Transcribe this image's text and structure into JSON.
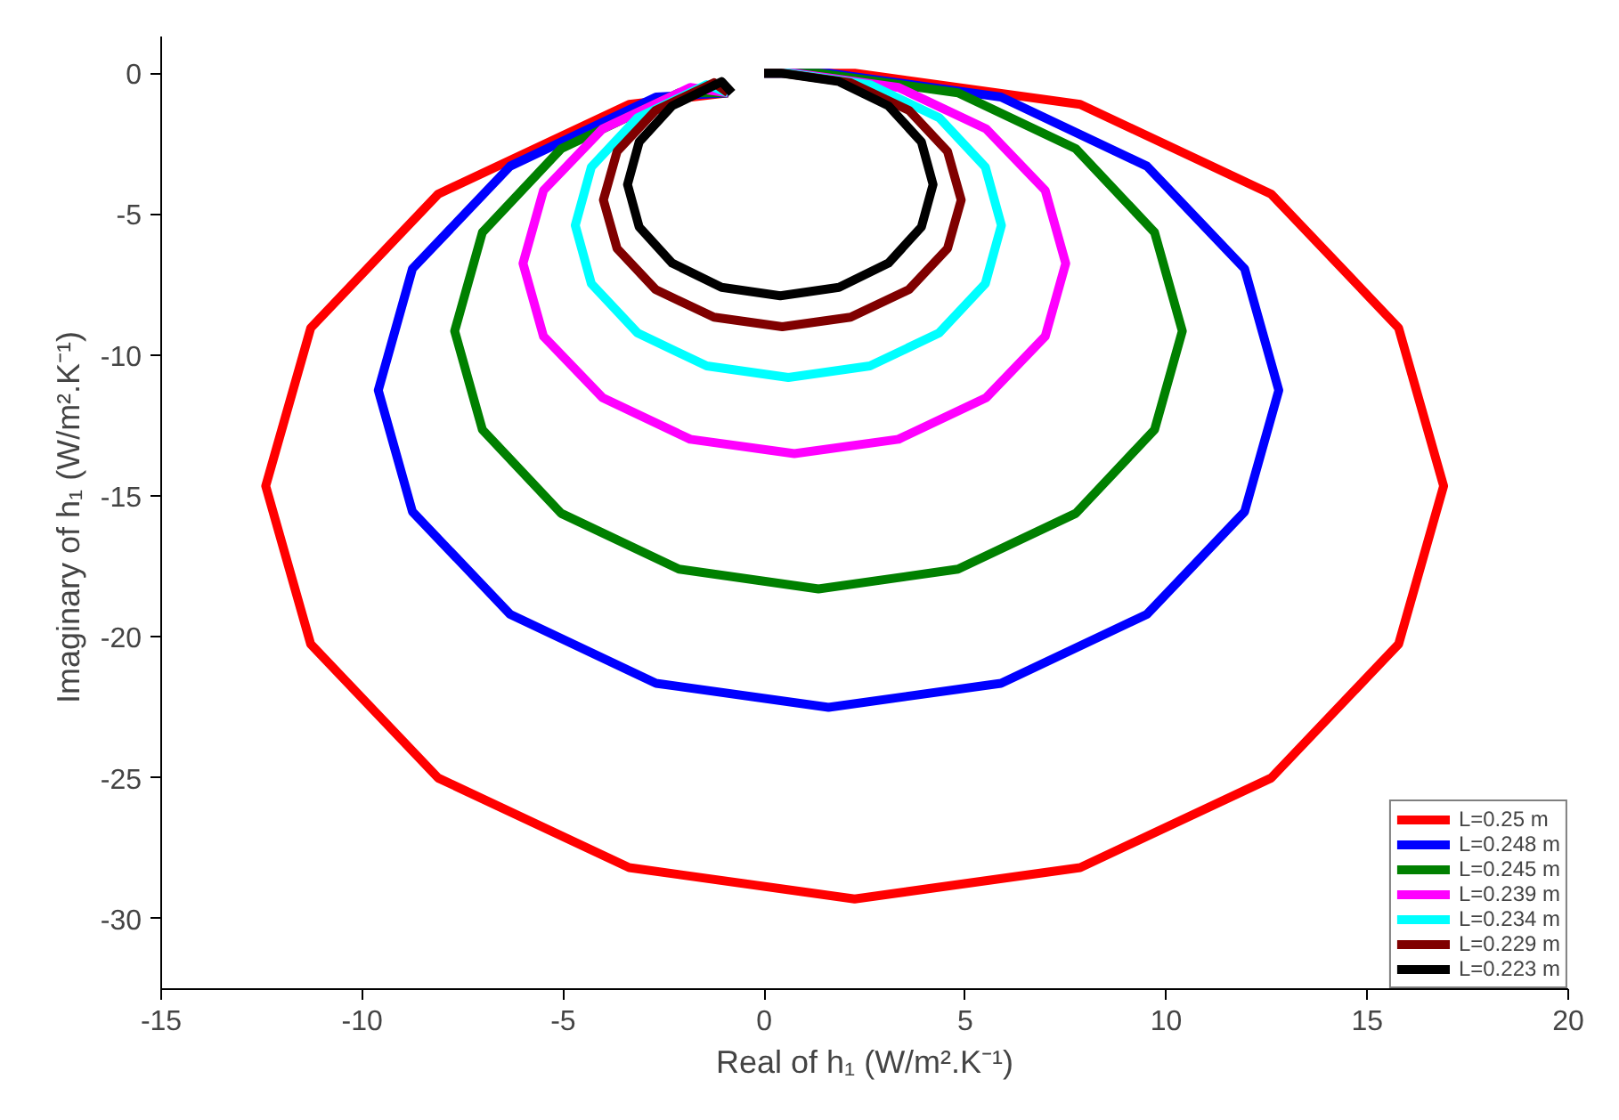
{
  "chart_data": {
    "type": "line",
    "xlabel": "Real of h₁ (W/m².K⁻¹)",
    "ylabel": "Imaginary of  h₁ (W/m².K⁻¹)",
    "xlim": [
      -15,
      20
    ],
    "ylim": [
      -32.5,
      1.3
    ],
    "xticks": [
      -15,
      -10,
      -5,
      0,
      5,
      10,
      15,
      20
    ],
    "yticks": [
      -30,
      -25,
      -20,
      -15,
      -10,
      -5,
      0
    ],
    "grid": false,
    "legend": "bottom right",
    "marker": "none",
    "line_style": "solid",
    "series": [
      {
        "name": "L=0.25 m",
        "color": "#ff0000",
        "x": [
          0,
          2.25,
          7.86,
          12.61,
          15.78,
          16.9,
          15.78,
          12.61,
          7.86,
          2.25,
          -3.36,
          -8.11,
          -11.28,
          -12.4,
          -11.28,
          -8.11,
          -3.36,
          -0.9
        ],
        "values": [
          0,
          0,
          -1.11,
          -4.29,
          -9.04,
          -14.65,
          -20.26,
          -25.01,
          -28.19,
          -29.3,
          -28.19,
          -25.01,
          -20.26,
          -14.65,
          -9.04,
          -4.29,
          -1.11,
          -0.7
        ]
      },
      {
        "name": "L=0.248 m",
        "color": "#0000ff",
        "x": [
          0,
          1.6,
          5.89,
          9.52,
          11.95,
          12.8,
          11.95,
          9.52,
          5.89,
          1.6,
          -2.69,
          -6.32,
          -8.75,
          -9.6,
          -8.75,
          -6.32,
          -2.69,
          -0.9
        ],
        "values": [
          0,
          0,
          -0.85,
          -3.3,
          -6.94,
          -11.25,
          -15.56,
          -19.2,
          -21.65,
          -22.5,
          -21.65,
          -19.2,
          -15.56,
          -11.25,
          -6.94,
          -3.3,
          -0.85,
          -0.7
        ]
      },
      {
        "name": "L=0.245 m",
        "color": "#008000",
        "x": [
          0,
          1.35,
          4.82,
          7.75,
          9.71,
          10.4,
          9.71,
          7.75,
          4.82,
          1.35,
          -2.12,
          -5.05,
          -7.01,
          -7.7,
          -7.01,
          -5.05,
          -2.12,
          -0.9
        ],
        "values": [
          0,
          0,
          -0.7,
          -2.68,
          -5.65,
          -9.15,
          -12.65,
          -15.62,
          -17.6,
          -18.3,
          -17.6,
          -15.62,
          -12.65,
          -9.15,
          -5.65,
          -2.68,
          -0.7,
          -0.7
        ]
      },
      {
        "name": "L=0.239 m",
        "color": "#ff00ff",
        "x": [
          0,
          0.75,
          3.34,
          5.52,
          6.99,
          7.5,
          6.99,
          5.52,
          3.34,
          0.75,
          -1.84,
          -4.02,
          -5.49,
          -6.0,
          -5.49,
          -4.02,
          -1.84,
          -0.9
        ],
        "values": [
          0,
          0,
          -0.51,
          -1.98,
          -4.16,
          -6.75,
          -9.34,
          -11.52,
          -12.99,
          -13.5,
          -12.99,
          -11.52,
          -9.34,
          -6.75,
          -4.16,
          -1.98,
          -0.51,
          -0.7
        ]
      },
      {
        "name": "L=0.234 m",
        "color": "#00ffff",
        "x": [
          0,
          0.6,
          2.63,
          4.35,
          5.5,
          5.9,
          5.5,
          4.35,
          2.63,
          0.6,
          -1.43,
          -3.15,
          -4.3,
          -4.7,
          -4.3,
          -3.15,
          -1.43,
          -0.9
        ],
        "values": [
          0,
          0,
          -0.41,
          -1.58,
          -3.33,
          -5.4,
          -7.47,
          -9.22,
          -10.39,
          -10.8,
          -10.39,
          -9.22,
          -7.47,
          -5.4,
          -3.33,
          -1.58,
          -0.41,
          -0.7
        ]
      },
      {
        "name": "L=0.229 m",
        "color": "#800000",
        "x": [
          0,
          0.45,
          2.15,
          3.6,
          4.56,
          4.9,
          4.56,
          3.6,
          2.15,
          0.45,
          -1.25,
          -2.7,
          -3.66,
          -4.0,
          -3.66,
          -2.7,
          -1.25,
          -0.9
        ],
        "values": [
          0,
          0,
          -0.34,
          -1.32,
          -2.78,
          -4.5,
          -6.22,
          -7.68,
          -8.66,
          -9.0,
          -8.66,
          -7.68,
          -6.22,
          -4.5,
          -2.78,
          -1.32,
          -0.34,
          -0.7
        ]
      },
      {
        "name": "L=0.223 m",
        "color": "#000000",
        "x": [
          0,
          0.4,
          1.86,
          3.09,
          3.91,
          4.2,
          3.91,
          3.09,
          1.86,
          0.4,
          -1.06,
          -2.29,
          -3.11,
          -3.4,
          -3.11,
          -2.29,
          -1.06,
          -0.8
        ],
        "values": [
          0,
          0,
          -0.3,
          -1.16,
          -2.44,
          -3.95,
          -5.46,
          -6.74,
          -7.6,
          -7.9,
          -7.6,
          -6.74,
          -5.46,
          -3.95,
          -2.44,
          -1.16,
          -0.3,
          -0.7
        ]
      }
    ]
  }
}
